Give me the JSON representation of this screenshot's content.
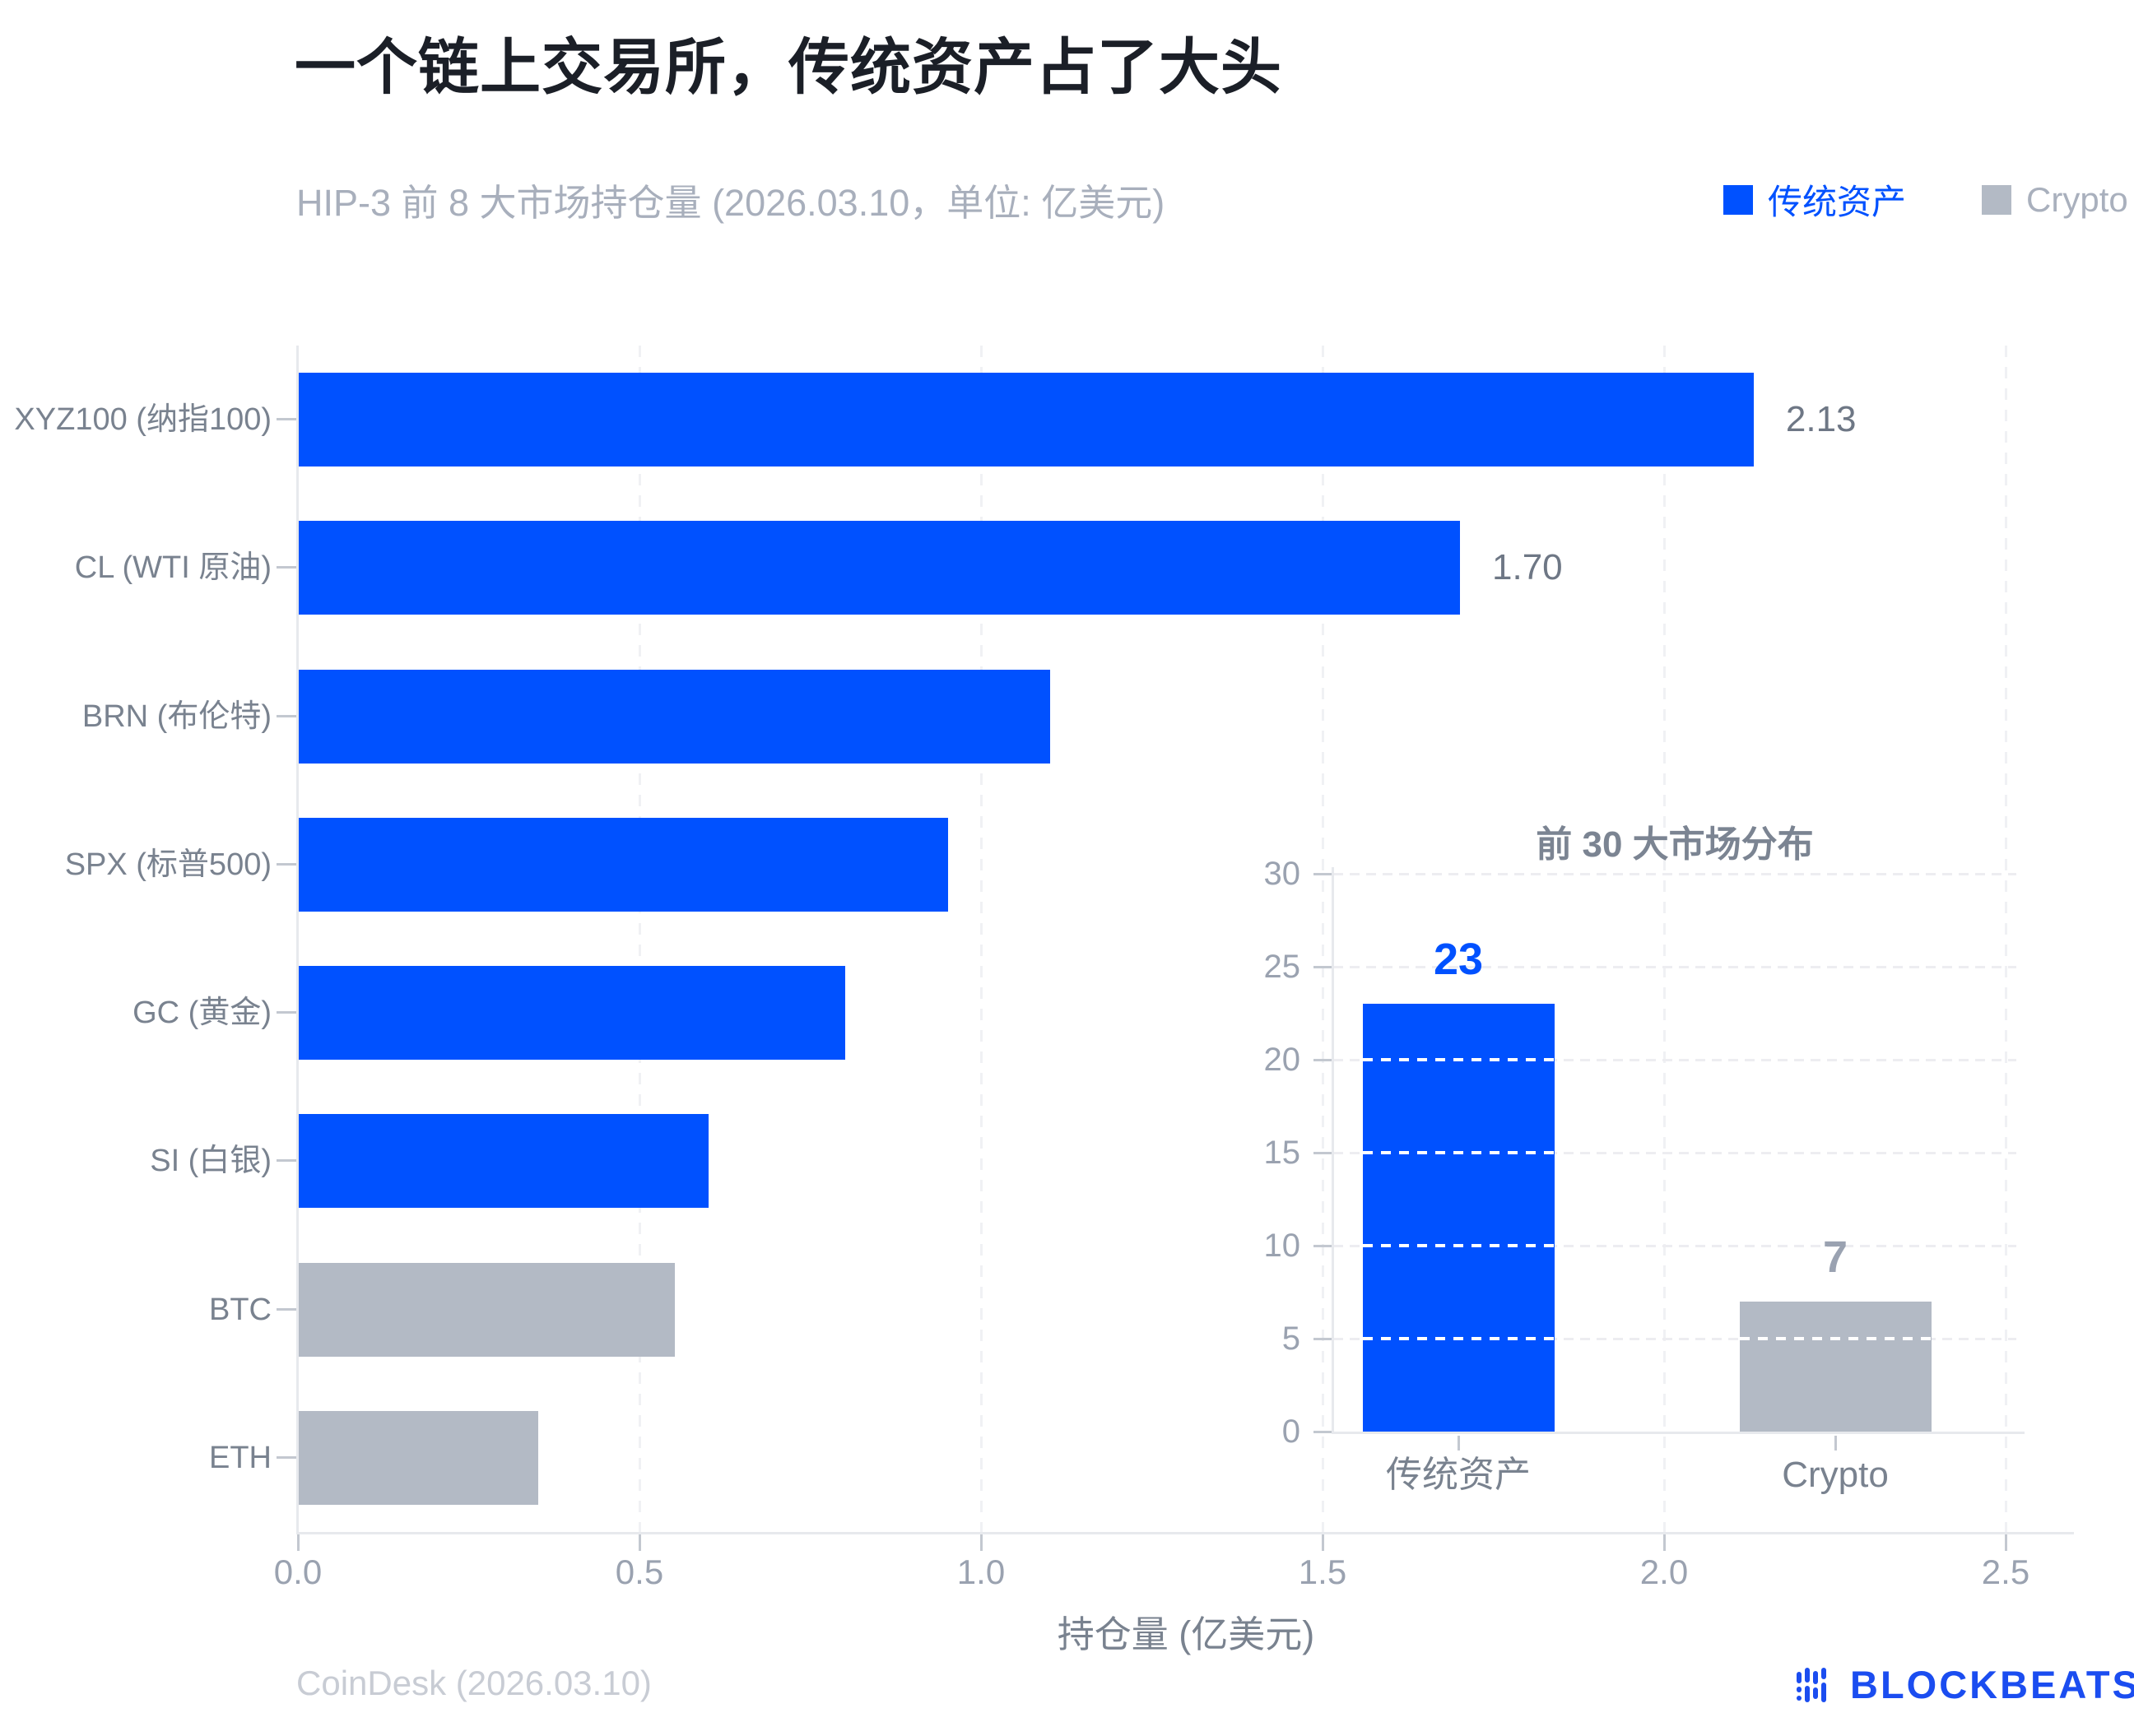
{
  "page": {
    "title": "一个链上交易所，传统资产占了大头",
    "subtitle": "HIP-3 前 8 大市场持仓量 (2026.03.10，单位: 亿美元)",
    "source": "CoinDesk (2026.03.10)",
    "brand": "BLOCKBEATS"
  },
  "legend": {
    "items": [
      {
        "label": "传统资产",
        "series": "traditional",
        "color": "#0051ff",
        "label_color": "#0051ff"
      },
      {
        "label": "Crypto",
        "series": "crypto",
        "color": "#b3bac5",
        "label_color": "#a9b0bd"
      }
    ]
  },
  "colors": {
    "traditional": "#0051ff",
    "crypto": "#b3bac5"
  },
  "chart_data": [
    {
      "id": "main-bar-chart",
      "type": "bar",
      "orientation": "horizontal",
      "categories": [
        "XYZ100 (纳指100)",
        "CL (WTI 原油)",
        "BRN (布伦特)",
        "SPX (标普500)",
        "GC (黄金)",
        "SI (白银)",
        "BTC",
        "ETH"
      ],
      "values": [
        2.13,
        1.7,
        1.1,
        0.95,
        0.8,
        0.6,
        0.55,
        0.35
      ],
      "point_series": [
        "traditional",
        "traditional",
        "traditional",
        "traditional",
        "traditional",
        "traditional",
        "crypto",
        "crypto"
      ],
      "bar_labels": [
        "2.13",
        "1.70",
        "",
        "",
        "",
        "",
        "",
        ""
      ],
      "xlabel": "持仓量 (亿美元)",
      "xlim": [
        0,
        2.5
      ],
      "xticks": [
        0,
        0.5,
        1,
        1.5,
        2,
        2.5
      ],
      "xtick_labels": [
        "0.0",
        "0.5",
        "1.0",
        "1.5",
        "2.0",
        "2.5"
      ],
      "grid": "vertical-dashed",
      "legend_position": "top-right"
    },
    {
      "id": "inset-bar-chart",
      "type": "bar",
      "orientation": "vertical",
      "title": "前 30 大市场分布",
      "categories": [
        "传统资产",
        "Crypto"
      ],
      "values": [
        23,
        7
      ],
      "point_series": [
        "traditional",
        "crypto"
      ],
      "bar_labels": [
        "23",
        "7"
      ],
      "bar_label_colors": [
        "#0051ff",
        "#9aa2b1"
      ],
      "ylim": [
        0,
        30
      ],
      "yticks": [
        0,
        5,
        10,
        15,
        20,
        25,
        30
      ],
      "grid": "horizontal-dashed"
    }
  ]
}
